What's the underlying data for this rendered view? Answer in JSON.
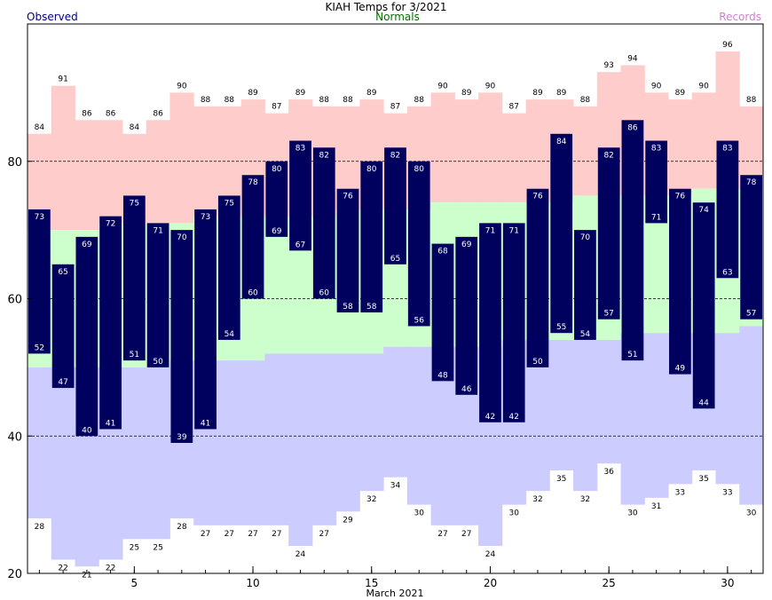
{
  "chart_data": {
    "type": "bar",
    "title": "KIAH Temps for 3/2021",
    "xlabel": "March 2021",
    "ylabel": "",
    "legend": {
      "observed": "Observed",
      "normals": "Normals",
      "records": "Records"
    },
    "colors": {
      "observed": "#00005f",
      "normals": "#ccffcc",
      "record_high": "#ffcccc",
      "record_low": "#ccccff",
      "observed_legend": "#000080",
      "normals_legend": "#007000",
      "records_legend": "#cc80cc"
    },
    "ylim": [
      20,
      100
    ],
    "xlim": [
      0.5,
      31.5
    ],
    "yticks": [
      20,
      40,
      60,
      80
    ],
    "xticks": [
      5,
      10,
      15,
      20,
      25,
      30
    ],
    "gridlines_y": [
      40,
      60,
      80
    ],
    "days": [
      1,
      2,
      3,
      4,
      5,
      6,
      7,
      8,
      9,
      10,
      11,
      12,
      13,
      14,
      15,
      16,
      17,
      18,
      19,
      20,
      21,
      22,
      23,
      24,
      25,
      26,
      27,
      28,
      29,
      30,
      31
    ],
    "series": [
      {
        "name": "Observed",
        "high": [
          73,
          65,
          69,
          72,
          75,
          71,
          70,
          73,
          75,
          78,
          80,
          83,
          82,
          76,
          80,
          82,
          80,
          68,
          69,
          71,
          71,
          76,
          84,
          70,
          82,
          86,
          83,
          76,
          74,
          83,
          78
        ],
        "low": [
          52,
          47,
          40,
          41,
          51,
          50,
          39,
          41,
          54,
          60,
          69,
          67,
          60,
          58,
          58,
          65,
          56,
          48,
          46,
          42,
          42,
          50,
          55,
          54,
          57,
          51,
          71,
          49,
          44,
          63,
          57
        ]
      },
      {
        "name": "Normals",
        "high": [
          70,
          70,
          70,
          71,
          71,
          71,
          71,
          72,
          72,
          72,
          72,
          72,
          72,
          73,
          73,
          73,
          73,
          74,
          74,
          74,
          74,
          74,
          74,
          75,
          75,
          75,
          75,
          75,
          76,
          76,
          76
        ],
        "low": [
          50,
          50,
          50,
          50,
          50,
          50,
          51,
          51,
          51,
          51,
          52,
          52,
          52,
          52,
          52,
          53,
          53,
          53,
          53,
          53,
          54,
          54,
          54,
          54,
          54,
          55,
          55,
          55,
          55,
          55,
          56
        ]
      },
      {
        "name": "Records",
        "high": [
          84,
          91,
          86,
          86,
          84,
          86,
          90,
          88,
          88,
          89,
          87,
          89,
          88,
          88,
          89,
          87,
          88,
          90,
          89,
          90,
          87,
          89,
          89,
          88,
          93,
          94,
          90,
          89,
          90,
          96,
          88
        ],
        "low": [
          28,
          22,
          21,
          22,
          25,
          25,
          28,
          27,
          27,
          27,
          27,
          24,
          27,
          29,
          32,
          34,
          30,
          27,
          27,
          24,
          30,
          32,
          35,
          32,
          36,
          30,
          31,
          33,
          35,
          33,
          30
        ]
      }
    ]
  }
}
